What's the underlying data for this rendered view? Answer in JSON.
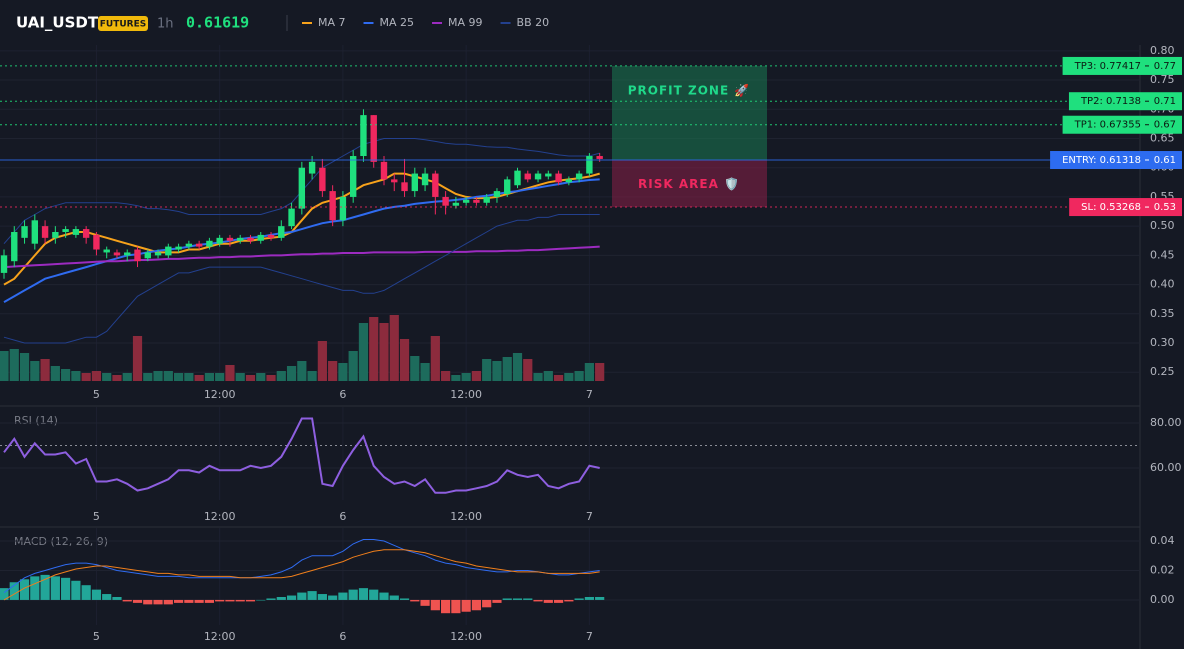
{
  "chart_data": [
    {
      "type": "candlestick",
      "title": "UAI_USDT",
      "badge": "FUTURES",
      "interval": "1h",
      "last_price": 0.61619,
      "categories": [
        null,
        null,
        null,
        null,
        null,
        null,
        null,
        null,
        null,
        "5",
        null,
        null,
        null,
        null,
        null,
        null,
        null,
        null,
        null,
        null,
        null,
        "12:00",
        null,
        null,
        null,
        null,
        null,
        null,
        null,
        null,
        null,
        null,
        null,
        "6",
        null,
        null,
        null,
        null,
        null,
        null,
        null,
        null,
        null,
        null,
        null,
        "12:00",
        null,
        null,
        null,
        null,
        null,
        null,
        null,
        null,
        null,
        null,
        null,
        "7",
        null
      ],
      "open": [
        0.42,
        0.44,
        0.48,
        0.47,
        0.5,
        0.48,
        0.49,
        0.485,
        0.495,
        0.485,
        0.455,
        0.455,
        0.45,
        0.46,
        0.445,
        0.45,
        0.45,
        0.46,
        0.465,
        0.47,
        0.465,
        0.47,
        0.48,
        0.475,
        0.48,
        0.475,
        0.485,
        0.48,
        0.5,
        0.53,
        0.59,
        0.6,
        0.56,
        0.51,
        0.55,
        0.62,
        0.69,
        0.61,
        0.58,
        0.575,
        0.56,
        0.57,
        0.59,
        0.55,
        0.535,
        0.54,
        0.545,
        0.54,
        0.55,
        0.555,
        0.57,
        0.59,
        0.58,
        0.585,
        0.59,
        0.575,
        0.58,
        0.59,
        0.62
      ],
      "high": [
        0.46,
        0.5,
        0.51,
        0.52,
        0.51,
        0.5,
        0.5,
        0.5,
        0.5,
        0.49,
        0.465,
        0.46,
        0.46,
        0.465,
        0.46,
        0.46,
        0.47,
        0.47,
        0.475,
        0.475,
        0.48,
        0.485,
        0.485,
        0.485,
        0.485,
        0.49,
        0.49,
        0.51,
        0.54,
        0.61,
        0.62,
        0.615,
        0.57,
        0.56,
        0.63,
        0.7,
        0.69,
        0.62,
        0.59,
        0.615,
        0.6,
        0.6,
        0.595,
        0.56,
        0.55,
        0.55,
        0.55,
        0.555,
        0.565,
        0.585,
        0.6,
        0.595,
        0.595,
        0.595,
        0.595,
        0.585,
        0.595,
        0.625,
        0.625
      ],
      "low": [
        0.41,
        0.43,
        0.47,
        0.46,
        0.47,
        0.47,
        0.48,
        0.48,
        0.47,
        0.45,
        0.445,
        0.445,
        0.44,
        0.43,
        0.44,
        0.445,
        0.445,
        0.455,
        0.46,
        0.46,
        0.46,
        0.465,
        0.465,
        0.47,
        0.47,
        0.47,
        0.475,
        0.475,
        0.495,
        0.52,
        0.58,
        0.55,
        0.5,
        0.5,
        0.54,
        0.61,
        0.6,
        0.57,
        0.56,
        0.55,
        0.55,
        0.56,
        0.52,
        0.52,
        0.53,
        0.535,
        0.535,
        0.535,
        0.54,
        0.55,
        0.565,
        0.575,
        0.575,
        0.58,
        0.57,
        0.57,
        0.575,
        0.585,
        0.61
      ],
      "close": [
        0.45,
        0.49,
        0.5,
        0.51,
        0.48,
        0.49,
        0.495,
        0.495,
        0.48,
        0.46,
        0.46,
        0.45,
        0.455,
        0.44,
        0.455,
        0.455,
        0.465,
        0.465,
        0.47,
        0.465,
        0.475,
        0.48,
        0.475,
        0.48,
        0.475,
        0.485,
        0.48,
        0.5,
        0.53,
        0.6,
        0.61,
        0.56,
        0.51,
        0.55,
        0.62,
        0.69,
        0.61,
        0.58,
        0.575,
        0.56,
        0.59,
        0.59,
        0.55,
        0.535,
        0.54,
        0.545,
        0.54,
        0.55,
        0.56,
        0.58,
        0.595,
        0.58,
        0.59,
        0.59,
        0.575,
        0.58,
        0.59,
        0.62,
        0.615
      ],
      "up_color": "#1fe07e",
      "down_color": "#f0285f",
      "volume": {
        "values": [
          30,
          32,
          28,
          20,
          22,
          15,
          12,
          10,
          8,
          10,
          8,
          6,
          8,
          45,
          8,
          10,
          10,
          8,
          8,
          6,
          8,
          8,
          16,
          8,
          6,
          8,
          6,
          10,
          15,
          20,
          10,
          40,
          20,
          18,
          30,
          58,
          64,
          58,
          66,
          42,
          25,
          18,
          45,
          10,
          6,
          8,
          10,
          22,
          20,
          24,
          28,
          22,
          8,
          10,
          6,
          8,
          10,
          18,
          18
        ],
        "up_color": "#1d6b5c",
        "down_color": "#8c2b3d"
      },
      "overlays": [
        {
          "name": "MA 7",
          "color": "#f7a21b",
          "values": [
            0.4,
            0.41,
            0.43,
            0.45,
            0.47,
            0.48,
            0.485,
            0.49,
            0.49,
            0.485,
            0.48,
            0.475,
            0.47,
            0.465,
            0.46,
            0.455,
            0.455,
            0.455,
            0.46,
            0.46,
            0.465,
            0.47,
            0.47,
            0.475,
            0.475,
            0.478,
            0.48,
            0.482,
            0.49,
            0.51,
            0.53,
            0.54,
            0.545,
            0.55,
            0.56,
            0.57,
            0.575,
            0.58,
            0.59,
            0.59,
            0.585,
            0.58,
            0.575,
            0.565,
            0.555,
            0.55,
            0.548,
            0.548,
            0.55,
            0.555,
            0.56,
            0.565,
            0.57,
            0.575,
            0.578,
            0.58,
            0.582,
            0.585,
            0.59
          ]
        },
        {
          "name": "MA 25",
          "color": "#2f6bf0",
          "values": [
            0.37,
            0.38,
            0.39,
            0.4,
            0.41,
            0.415,
            0.42,
            0.425,
            0.43,
            0.435,
            0.44,
            0.445,
            0.45,
            0.452,
            0.455,
            0.458,
            0.46,
            0.462,
            0.465,
            0.468,
            0.47,
            0.472,
            0.475,
            0.478,
            0.48,
            0.482,
            0.485,
            0.488,
            0.49,
            0.495,
            0.5,
            0.505,
            0.508,
            0.51,
            0.515,
            0.52,
            0.525,
            0.53,
            0.533,
            0.535,
            0.538,
            0.54,
            0.542,
            0.543,
            0.545,
            0.547,
            0.55,
            0.552,
            0.555,
            0.558,
            0.56,
            0.563,
            0.566,
            0.569,
            0.572,
            0.575,
            0.577,
            0.579,
            0.58
          ]
        },
        {
          "name": "MA 99",
          "color": "#9c2bc0",
          "values": [
            0.43,
            0.431,
            0.432,
            0.433,
            0.434,
            0.435,
            0.436,
            0.437,
            0.438,
            0.439,
            0.44,
            0.44,
            0.441,
            0.442,
            0.442,
            0.443,
            0.444,
            0.444,
            0.445,
            0.446,
            0.446,
            0.447,
            0.447,
            0.448,
            0.448,
            0.449,
            0.45,
            0.45,
            0.451,
            0.452,
            0.452,
            0.453,
            0.453,
            0.454,
            0.454,
            0.454,
            0.455,
            0.455,
            0.455,
            0.455,
            0.455,
            0.456,
            0.456,
            0.456,
            0.456,
            0.456,
            0.457,
            0.457,
            0.457,
            0.458,
            0.458,
            0.459,
            0.459,
            0.46,
            0.461,
            0.462,
            0.463,
            0.464,
            0.465
          ]
        },
        {
          "name": "BB 20",
          "color": "#23408e",
          "upper": [
            0.47,
            0.49,
            0.51,
            0.52,
            0.53,
            0.535,
            0.54,
            0.54,
            0.54,
            0.54,
            0.54,
            0.54,
            0.538,
            0.535,
            0.53,
            0.53,
            0.528,
            0.525,
            0.52,
            0.52,
            0.52,
            0.52,
            0.52,
            0.52,
            0.52,
            0.52,
            0.525,
            0.53,
            0.54,
            0.56,
            0.58,
            0.6,
            0.61,
            0.62,
            0.63,
            0.64,
            0.645,
            0.65,
            0.65,
            0.65,
            0.65,
            0.648,
            0.645,
            0.642,
            0.64,
            0.64,
            0.638,
            0.636,
            0.635,
            0.635,
            0.632,
            0.63,
            0.628,
            0.625,
            0.622,
            0.62,
            0.62,
            0.62,
            0.625
          ],
          "lower": [
            0.31,
            0.305,
            0.3,
            0.3,
            0.3,
            0.3,
            0.3,
            0.305,
            0.31,
            0.31,
            0.32,
            0.34,
            0.36,
            0.38,
            0.39,
            0.4,
            0.41,
            0.42,
            0.42,
            0.425,
            0.43,
            0.43,
            0.43,
            0.43,
            0.43,
            0.43,
            0.425,
            0.42,
            0.415,
            0.41,
            0.405,
            0.4,
            0.395,
            0.39,
            0.39,
            0.385,
            0.385,
            0.39,
            0.4,
            0.41,
            0.42,
            0.43,
            0.44,
            0.45,
            0.46,
            0.47,
            0.48,
            0.49,
            0.5,
            0.505,
            0.51,
            0.51,
            0.515,
            0.515,
            0.52,
            0.52,
            0.52,
            0.52,
            0.52
          ]
        }
      ],
      "ylim": [
        0.235,
        0.81
      ],
      "yticks": [
        0.25,
        {
          "value": 0.3,
          "label": "0.30"
        },
        0.35,
        {
          "value": 0.4,
          "label": "0.40"
        },
        0.45,
        {
          "value": 0.5,
          "label": "0.50"
        },
        0.55,
        {
          "value": 0.6,
          "label": "0.60"
        },
        0.65,
        {
          "value": 0.7,
          "label": "0.70"
        },
        0.75,
        {
          "value": 0.8,
          "label": "0.80"
        }
      ],
      "grid": true,
      "levels": [
        {
          "text": "TP3: 0.77417",
          "value": 0.77417,
          "axis_label": "0.77",
          "color": "#1fe07e",
          "style": "dotted"
        },
        {
          "text": "TP2: 0.7138",
          "value": 0.7138,
          "axis_label": "0.71",
          "color": "#1fe07e",
          "style": "dotted"
        },
        {
          "text": "TP1: 0.67355",
          "value": 0.67355,
          "axis_label": "0.67",
          "color": "#1fe07e",
          "style": "dotted"
        },
        {
          "text": "ENTRY: 0.61318",
          "value": 0.61318,
          "axis_label": "0.61",
          "color": "#2d6cf0",
          "style": "solid"
        },
        {
          "text": "SL: 0.53268",
          "value": 0.53268,
          "axis_label": "0.53",
          "color": "#f0285f",
          "style": "dotted"
        }
      ],
      "zones": [
        {
          "text": "PROFIT ZONE 🚀",
          "from": 0.61318,
          "to": 0.77417,
          "color": "#1a7a52",
          "text_color": "#1fd98a"
        },
        {
          "text": "RISK AREA 🛡️",
          "from": 0.53268,
          "to": 0.61318,
          "color": "#8a1f47",
          "text_color": "#f0285f"
        }
      ]
    },
    {
      "type": "line",
      "title": "RSI (14)",
      "color": "#8e5fe0",
      "values": [
        67,
        73,
        65,
        71,
        66,
        66,
        67,
        62,
        64,
        54,
        54,
        55,
        53,
        50,
        51,
        53,
        55,
        59,
        59,
        58,
        61,
        59,
        59,
        59,
        61,
        60,
        61,
        65,
        73,
        82,
        82,
        53,
        52,
        61,
        68,
        74,
        61,
        56,
        53,
        54,
        52,
        55,
        49,
        49,
        50,
        50,
        51,
        52,
        54,
        59,
        57,
        56,
        57,
        52,
        51,
        53,
        54,
        61,
        60
      ],
      "ylim": [
        45.8,
        87.1
      ],
      "yticks": [
        {
          "value": 60,
          "label": "60.00"
        },
        {
          "value": 80,
          "label": "80.00"
        }
      ],
      "level": 70
    },
    {
      "type": "macd",
      "title": "MACD (12, 26, 9)",
      "series": [
        {
          "color": "#2f6bf0",
          "values": [
            0.005,
            0.01,
            0.015,
            0.018,
            0.02,
            0.022,
            0.024,
            0.025,
            0.025,
            0.024,
            0.022,
            0.02,
            0.019,
            0.018,
            0.017,
            0.016,
            0.016,
            0.016,
            0.015,
            0.015,
            0.015,
            0.015,
            0.015,
            0.015,
            0.015,
            0.016,
            0.017,
            0.019,
            0.022,
            0.027,
            0.03,
            0.03,
            0.03,
            0.033,
            0.038,
            0.041,
            0.041,
            0.04,
            0.037,
            0.034,
            0.032,
            0.03,
            0.027,
            0.025,
            0.024,
            0.022,
            0.021,
            0.02,
            0.019,
            0.019,
            0.02,
            0.02,
            0.019,
            0.018,
            0.017,
            0.017,
            0.018,
            0.019,
            0.02
          ]
        },
        {
          "color": "#f07f1b",
          "values": [
            0,
            0.004,
            0.008,
            0.011,
            0.014,
            0.017,
            0.019,
            0.021,
            0.022,
            0.023,
            0.023,
            0.022,
            0.021,
            0.02,
            0.019,
            0.018,
            0.018,
            0.017,
            0.017,
            0.016,
            0.016,
            0.016,
            0.016,
            0.015,
            0.015,
            0.015,
            0.015,
            0.015,
            0.016,
            0.018,
            0.02,
            0.022,
            0.024,
            0.026,
            0.029,
            0.031,
            0.033,
            0.034,
            0.034,
            0.034,
            0.033,
            0.032,
            0.03,
            0.028,
            0.026,
            0.025,
            0.023,
            0.022,
            0.021,
            0.02,
            0.019,
            0.019,
            0.019,
            0.018,
            0.018,
            0.018,
            0.018,
            0.018,
            0.019
          ]
        }
      ],
      "histogram": {
        "pos_color": "#22a699",
        "neg_color": "#ef5350",
        "values": [
          0.008,
          0.012,
          0.014,
          0.016,
          0.017,
          0.016,
          0.015,
          0.013,
          0.01,
          0.007,
          0.004,
          0.002,
          -0.001,
          -0.002,
          -0.003,
          -0.003,
          -0.003,
          -0.002,
          -0.002,
          -0.002,
          -0.002,
          -0.001,
          -0.001,
          -0.001,
          -0.001,
          0,
          0.001,
          0.002,
          0.003,
          0.005,
          0.006,
          0.004,
          0.003,
          0.005,
          0.007,
          0.008,
          0.007,
          0.005,
          0.003,
          0.001,
          -0.001,
          -0.004,
          -0.007,
          -0.009,
          -0.009,
          -0.008,
          -0.007,
          -0.005,
          -0.002,
          0.001,
          0.001,
          0.001,
          -0.001,
          -0.002,
          -0.002,
          -0.001,
          0.001,
          0.002,
          0.002
        ]
      },
      "ylim": [
        -0.017,
        0.0488
      ],
      "yticks": [
        {
          "value": 0,
          "label": "0.00"
        },
        0.02,
        0.04
      ]
    }
  ]
}
